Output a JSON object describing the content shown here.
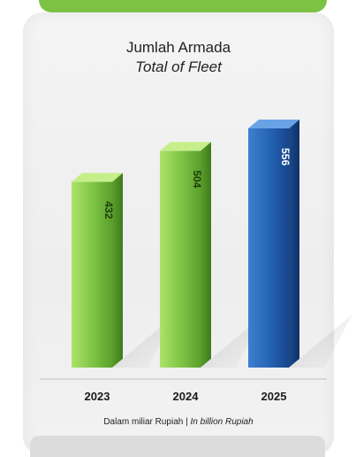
{
  "chart_data": {
    "type": "bar",
    "title": "Jumlah Armada",
    "subtitle": "Total of Fleet",
    "categories": [
      "2023",
      "2024",
      "2025"
    ],
    "values": [
      432,
      504,
      556
    ],
    "ylim": [
      0,
      600
    ],
    "unit_label": "Dalam miliar Rupiah",
    "unit_label_en": "In billion Rupiah",
    "unit_separator": "|",
    "colors": [
      "#7cc243",
      "#7cc243",
      "#1f5aa6"
    ]
  }
}
